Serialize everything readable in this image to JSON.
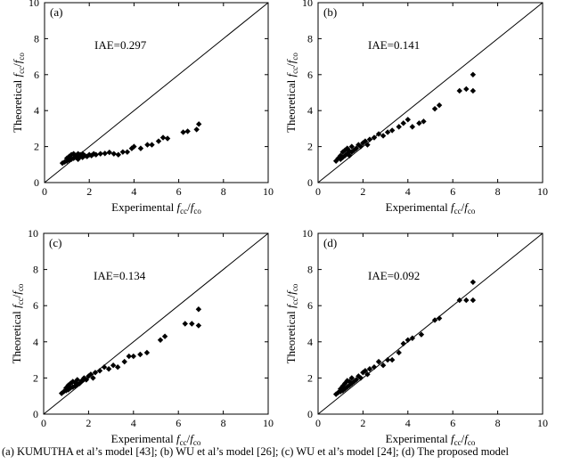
{
  "caption": "(a) KUMUTHA et al’s model [43]; (b) WU et al’s model [26]; (c) WU et al’s model [24]; (d) The proposed model",
  "colors": {
    "marker": "#000000",
    "axis": "#000000",
    "background": "#ffffff"
  },
  "chart_data": [
    {
      "type": "scatter",
      "panel_label": "(a)",
      "annotation": "IAE=0.297",
      "xlabel": "Experimental fcc/fco",
      "ylabel": "Theoretical fcc/fco",
      "xlim": [
        0,
        10
      ],
      "ylim": [
        0,
        10
      ],
      "xticks": [
        "0",
        "2",
        "4",
        "6",
        "8",
        "10"
      ],
      "yticks": [
        "0",
        "2",
        "4",
        "6",
        "8",
        "10"
      ],
      "reference_line": "y = x",
      "grid": false,
      "points": [
        [
          0.8,
          1.08
        ],
        [
          0.9,
          1.15
        ],
        [
          1.0,
          1.2
        ],
        [
          1.0,
          1.35
        ],
        [
          1.1,
          1.25
        ],
        [
          1.1,
          1.45
        ],
        [
          1.2,
          1.3
        ],
        [
          1.2,
          1.55
        ],
        [
          1.3,
          1.35
        ],
        [
          1.3,
          1.6
        ],
        [
          1.4,
          1.4
        ],
        [
          1.4,
          1.5
        ],
        [
          1.5,
          1.3
        ],
        [
          1.5,
          1.6
        ],
        [
          1.6,
          1.45
        ],
        [
          1.6,
          1.55
        ],
        [
          1.7,
          1.4
        ],
        [
          1.7,
          1.6
        ],
        [
          1.8,
          1.5
        ],
        [
          1.9,
          1.45
        ],
        [
          2.0,
          1.55
        ],
        [
          2.1,
          1.5
        ],
        [
          2.2,
          1.6
        ],
        [
          2.3,
          1.55
        ],
        [
          2.5,
          1.6
        ],
        [
          2.7,
          1.62
        ],
        [
          2.9,
          1.68
        ],
        [
          3.1,
          1.6
        ],
        [
          3.3,
          1.55
        ],
        [
          3.5,
          1.7
        ],
        [
          3.7,
          1.7
        ],
        [
          3.9,
          1.9
        ],
        [
          4.0,
          2.0
        ],
        [
          4.3,
          1.9
        ],
        [
          4.6,
          2.1
        ],
        [
          4.8,
          2.1
        ],
        [
          5.1,
          2.3
        ],
        [
          5.3,
          2.5
        ],
        [
          5.5,
          2.45
        ],
        [
          6.2,
          2.8
        ],
        [
          6.4,
          2.85
        ],
        [
          6.8,
          2.95
        ],
        [
          6.9,
          3.25
        ]
      ]
    },
    {
      "type": "scatter",
      "panel_label": "(b)",
      "annotation": "IAE=0.141",
      "xlabel": "Experimental fcc/fco",
      "ylabel": "Theoretical fcc/fco",
      "xlim": [
        0,
        10
      ],
      "ylim": [
        0,
        10
      ],
      "xticks": [
        "0",
        "2",
        "4",
        "6",
        "8",
        "10"
      ],
      "yticks": [
        "0",
        "2",
        "4",
        "6",
        "8",
        "10"
      ],
      "reference_line": "y = x",
      "grid": false,
      "points": [
        [
          0.8,
          1.2
        ],
        [
          0.9,
          1.35
        ],
        [
          1.0,
          1.3
        ],
        [
          1.0,
          1.5
        ],
        [
          1.1,
          1.4
        ],
        [
          1.1,
          1.7
        ],
        [
          1.2,
          1.5
        ],
        [
          1.2,
          1.8
        ],
        [
          1.3,
          1.6
        ],
        [
          1.3,
          1.9
        ],
        [
          1.4,
          1.5
        ],
        [
          1.4,
          1.75
        ],
        [
          1.5,
          1.7
        ],
        [
          1.5,
          2.0
        ],
        [
          1.6,
          1.8
        ],
        [
          1.7,
          1.9
        ],
        [
          1.8,
          2.1
        ],
        [
          1.9,
          2.0
        ],
        [
          2.0,
          2.2
        ],
        [
          2.1,
          2.3
        ],
        [
          2.2,
          2.1
        ],
        [
          2.3,
          2.4
        ],
        [
          2.5,
          2.5
        ],
        [
          2.7,
          2.7
        ],
        [
          2.9,
          2.6
        ],
        [
          3.1,
          2.8
        ],
        [
          3.3,
          2.9
        ],
        [
          3.6,
          3.1
        ],
        [
          3.8,
          3.3
        ],
        [
          4.0,
          3.5
        ],
        [
          4.2,
          3.1
        ],
        [
          4.5,
          3.3
        ],
        [
          4.7,
          3.4
        ],
        [
          5.2,
          4.1
        ],
        [
          5.4,
          4.3
        ],
        [
          6.3,
          5.1
        ],
        [
          6.6,
          5.2
        ],
        [
          6.9,
          5.1
        ],
        [
          6.9,
          6.0
        ]
      ]
    },
    {
      "type": "scatter",
      "panel_label": "(c)",
      "annotation": "IAE=0.134",
      "xlabel": "Experimental fcc/fco",
      "ylabel": "Theoretical fcc/fco",
      "xlim": [
        0,
        10
      ],
      "ylim": [
        0,
        10
      ],
      "xticks": [
        "0",
        "2",
        "4",
        "6",
        "8",
        "10"
      ],
      "yticks": [
        "0",
        "2",
        "4",
        "6",
        "8",
        "10"
      ],
      "reference_line": "y = x",
      "grid": false,
      "points": [
        [
          0.8,
          1.15
        ],
        [
          0.9,
          1.25
        ],
        [
          1.0,
          1.3
        ],
        [
          1.0,
          1.45
        ],
        [
          1.1,
          1.35
        ],
        [
          1.1,
          1.6
        ],
        [
          1.2,
          1.45
        ],
        [
          1.2,
          1.7
        ],
        [
          1.3,
          1.5
        ],
        [
          1.3,
          1.8
        ],
        [
          1.4,
          1.55
        ],
        [
          1.4,
          1.75
        ],
        [
          1.5,
          1.65
        ],
        [
          1.5,
          1.9
        ],
        [
          1.6,
          1.7
        ],
        [
          1.7,
          1.85
        ],
        [
          1.8,
          2.0
        ],
        [
          1.9,
          1.9
        ],
        [
          2.0,
          2.1
        ],
        [
          2.1,
          2.2
        ],
        [
          2.2,
          2.0
        ],
        [
          2.3,
          2.3
        ],
        [
          2.5,
          2.4
        ],
        [
          2.7,
          2.6
        ],
        [
          2.9,
          2.5
        ],
        [
          3.1,
          2.7
        ],
        [
          3.3,
          2.6
        ],
        [
          3.6,
          2.9
        ],
        [
          3.8,
          3.2
        ],
        [
          4.0,
          3.2
        ],
        [
          4.3,
          3.3
        ],
        [
          4.6,
          3.4
        ],
        [
          5.2,
          4.1
        ],
        [
          5.4,
          4.3
        ],
        [
          6.3,
          5.0
        ],
        [
          6.6,
          5.0
        ],
        [
          6.9,
          4.9
        ],
        [
          6.9,
          5.8
        ]
      ]
    },
    {
      "type": "scatter",
      "panel_label": "(d)",
      "annotation": "IAE=0.092",
      "xlabel": "Experimental fcc/fco",
      "ylabel": "Theoretical fcc/fco",
      "xlim": [
        0,
        10
      ],
      "ylim": [
        0,
        10
      ],
      "xticks": [
        "0",
        "2",
        "4",
        "6",
        "8",
        "10"
      ],
      "yticks": [
        "0",
        "2",
        "4",
        "6",
        "8",
        "10"
      ],
      "reference_line": "y = x",
      "grid": false,
      "points": [
        [
          0.8,
          1.1
        ],
        [
          0.9,
          1.2
        ],
        [
          1.0,
          1.25
        ],
        [
          1.0,
          1.4
        ],
        [
          1.1,
          1.3
        ],
        [
          1.1,
          1.55
        ],
        [
          1.2,
          1.4
        ],
        [
          1.2,
          1.7
        ],
        [
          1.3,
          1.5
        ],
        [
          1.3,
          1.85
        ],
        [
          1.4,
          1.6
        ],
        [
          1.4,
          1.8
        ],
        [
          1.5,
          1.7
        ],
        [
          1.5,
          2.0
        ],
        [
          1.6,
          1.8
        ],
        [
          1.7,
          1.9
        ],
        [
          1.8,
          2.1
        ],
        [
          1.9,
          2.0
        ],
        [
          2.0,
          2.3
        ],
        [
          2.1,
          2.4
        ],
        [
          2.2,
          2.2
        ],
        [
          2.3,
          2.5
        ],
        [
          2.5,
          2.6
        ],
        [
          2.7,
          2.9
        ],
        [
          2.9,
          2.7
        ],
        [
          3.1,
          3.0
        ],
        [
          3.3,
          3.0
        ],
        [
          3.6,
          3.4
        ],
        [
          3.8,
          3.9
        ],
        [
          4.0,
          4.1
        ],
        [
          4.2,
          4.2
        ],
        [
          4.6,
          4.4
        ],
        [
          5.2,
          5.2
        ],
        [
          5.4,
          5.3
        ],
        [
          6.3,
          6.3
        ],
        [
          6.6,
          6.3
        ],
        [
          6.9,
          6.3
        ],
        [
          6.9,
          7.3
        ]
      ]
    }
  ]
}
